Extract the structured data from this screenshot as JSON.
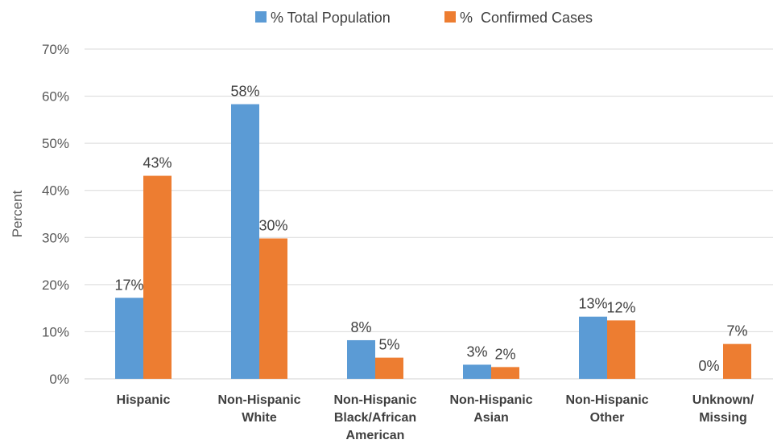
{
  "chart_data": {
    "type": "bar",
    "ylabel": "Percent",
    "ylim": [
      0,
      70
    ],
    "y_ticks": [
      0,
      10,
      20,
      30,
      40,
      50,
      60,
      70
    ],
    "y_tick_labels": [
      "0%",
      "10%",
      "20%",
      "30%",
      "40%",
      "50%",
      "60%",
      "70%"
    ],
    "grid": true,
    "legend_position": "top-center",
    "categories": [
      [
        "Hispanic"
      ],
      [
        "Non-Hispanic",
        "White"
      ],
      [
        "Non-Hispanic",
        "Black/African",
        "American"
      ],
      [
        "Non-Hispanic",
        "Asian"
      ],
      [
        "Non-Hispanic",
        "Other"
      ],
      [
        "Unknown/",
        "Missing"
      ]
    ],
    "series": [
      {
        "name": "% Total Population",
        "color": "#5B9BD5",
        "values": [
          17.2,
          58.3,
          8.2,
          3.0,
          13.2,
          0
        ],
        "labels": [
          "17%",
          "58%",
          "8%",
          "3%",
          "13%",
          "0%"
        ]
      },
      {
        "name": "%  Confirmed Cases",
        "color": "#ED7D31",
        "values": [
          43.1,
          29.8,
          4.5,
          2.5,
          12.4,
          7.4
        ],
        "labels": [
          "43%",
          "30%",
          "5%",
          "2%",
          "12%",
          "7%"
        ]
      }
    ]
  }
}
